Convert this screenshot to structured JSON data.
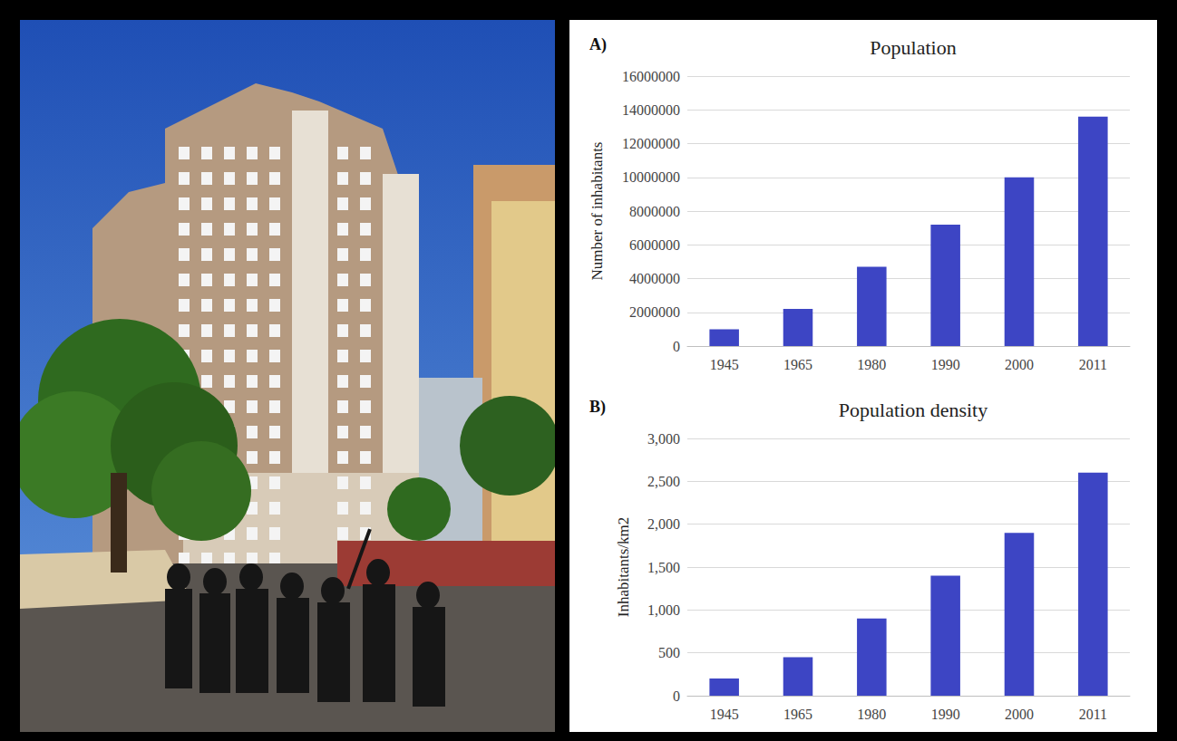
{
  "chart_data": [
    {
      "type": "bar",
      "title": "Population",
      "annotations": [
        "A)"
      ],
      "y_label": "Number of inhabitants",
      "categories": [
        "1945",
        "1965",
        "1980",
        "1990",
        "2000",
        "2011"
      ],
      "values": [
        1000000,
        2200000,
        4700000,
        7200000,
        10000000,
        13600000
      ],
      "color": "#3d45c4",
      "ylim": [
        0,
        16000000
      ],
      "yticks": [
        0,
        2000000,
        4000000,
        6000000,
        8000000,
        10000000,
        12000000,
        14000000,
        16000000
      ],
      "grid": true
    },
    {
      "type": "bar",
      "title": "Population density",
      "annotations": [
        "B)"
      ],
      "y_label": "Inhabitants/km2",
      "categories": [
        "1945",
        "1965",
        "1980",
        "1990",
        "2000",
        "2011"
      ],
      "values": [
        200,
        450,
        900,
        1400,
        1900,
        2600
      ],
      "color": "#3d45c4",
      "ylim": [
        0,
        3000
      ],
      "yticks": [
        0,
        500,
        {
          "value": 1000,
          "label": "1,000"
        },
        {
          "value": 1500,
          "label": "1,500"
        },
        {
          "value": 2000,
          "label": "2,000"
        },
        {
          "value": 2500,
          "label": "2,500"
        },
        {
          "value": 3000,
          "label": "3,000"
        }
      ],
      "grid": true
    }
  ]
}
